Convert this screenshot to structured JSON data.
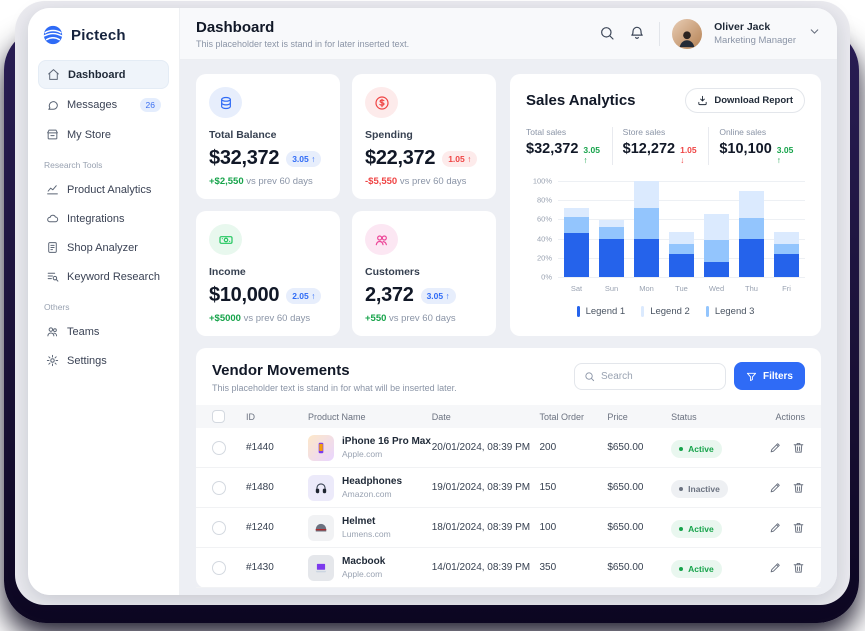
{
  "app": {
    "name": "Pictech",
    "accent_color": "#2f6bf6",
    "backdrop_color": "#1b1238"
  },
  "sidebar": {
    "sections": [
      {
        "label": "",
        "items": [
          {
            "icon": "home-icon",
            "label": "Dashboard",
            "active": true
          },
          {
            "icon": "chat-icon",
            "label": "Messages",
            "badge": "26"
          },
          {
            "icon": "store-icon",
            "label": "My Store"
          }
        ]
      },
      {
        "label": "Research Tools",
        "items": [
          {
            "icon": "chart-line-icon",
            "label": "Product Analytics"
          },
          {
            "icon": "cloud-icon",
            "label": "Integrations"
          },
          {
            "icon": "doc-edit-icon",
            "label": "Shop Analyzer"
          },
          {
            "icon": "list-search-icon",
            "label": "Keyword Research"
          }
        ]
      },
      {
        "label": "Others",
        "items": [
          {
            "icon": "users-icon",
            "label": "Teams"
          },
          {
            "icon": "gear-icon",
            "label": "Settings"
          }
        ]
      }
    ]
  },
  "header": {
    "title": "Dashboard",
    "subtitle": "This placeholder text is stand in for later inserted text.",
    "icons": [
      "search-icon",
      "bell-icon"
    ],
    "user": {
      "name": "Oliver Jack",
      "role": "Marketing Manager"
    }
  },
  "stats": [
    {
      "icon": "coins-icon",
      "icon_color": "#2f6bf6",
      "icon_bg": "#e7eefc",
      "title": "Total Balance",
      "value": "$32,372",
      "badge": "3.05 ↑",
      "badge_color": "#2f6bf6",
      "badge_bg": "#e7eefc",
      "delta": "+$2,550",
      "delta_color": "#16a34a",
      "delta_suffix": " vs prev 60 days"
    },
    {
      "icon": "dollar-circle-icon",
      "icon_color": "#ef4444",
      "icon_bg": "#fdebeb",
      "title": "Spending",
      "value": "$22,372",
      "badge": "1.05 ↑",
      "badge_color": "#ef4444",
      "badge_bg": "#fdebeb",
      "delta": "-$5,550",
      "delta_color": "#ef4444",
      "delta_suffix": " vs prev 60 days"
    },
    {
      "icon": "banknote-icon",
      "icon_color": "#22c55e",
      "icon_bg": "#e8f8ee",
      "title": "Income",
      "value": "$10,000",
      "badge": "2.05 ↑",
      "badge_color": "#2f6bf6",
      "badge_bg": "#e7eefc",
      "delta": "+$5000",
      "delta_color": "#16a34a",
      "delta_suffix": " vs prev 60 days"
    },
    {
      "icon": "people-icon",
      "icon_color": "#ec4899",
      "icon_bg": "#fce7f3",
      "title": "Customers",
      "value": "2,372",
      "badge": "3.05 ↑",
      "badge_color": "#2f6bf6",
      "badge_bg": "#e7eefc",
      "delta": "+550",
      "delta_color": "#16a34a",
      "delta_suffix": " vs prev 60 days"
    }
  ],
  "sales": {
    "title": "Sales Analytics",
    "download_label": "Download Report",
    "metrics": [
      {
        "label": "Total sales",
        "value": "$32,372",
        "change": "3.05 ↑",
        "change_color": "#16a34a"
      },
      {
        "label": "Store sales",
        "value": "$12,272",
        "change": "1.05 ↓",
        "change_color": "#ef4444"
      },
      {
        "label": "Online sales",
        "value": "$10,100",
        "change": "3.05 ↑",
        "change_color": "#16a34a"
      }
    ]
  },
  "chart_data": {
    "type": "bar",
    "stacked": true,
    "title": "Sales Analytics weekly breakdown",
    "categories": [
      "Sat",
      "Sun",
      "Mon",
      "Tue",
      "Wed",
      "Thu",
      "Fri"
    ],
    "series_stack_order_bottom_to_top": [
      {
        "name": "Legend 1",
        "color": "#2563eb",
        "values": [
          46,
          40,
          40,
          24,
          16,
          40,
          24
        ]
      },
      {
        "name": "Legend 3",
        "color": "#93c5fd",
        "values": [
          16,
          12,
          32,
          10,
          23,
          22,
          10
        ]
      },
      {
        "name": "Legend 2",
        "color": "#dbeafe",
        "values": [
          10,
          7,
          28,
          13,
          27,
          28,
          13
        ]
      }
    ],
    "legend": [
      {
        "name": "Legend 1",
        "color": "#2563eb"
      },
      {
        "name": "Legend 2",
        "color": "#dbeafe"
      },
      {
        "name": "Legend 3",
        "color": "#93c5fd"
      }
    ],
    "yticks": [
      "100%",
      "80%",
      "60%",
      "40%",
      "20%",
      "0%"
    ],
    "ylim": [
      0,
      100
    ],
    "grid": true,
    "legend_position": "bottom"
  },
  "vendor": {
    "title": "Vendor Movements",
    "subtitle": "This placeholder text is stand in for what will be inserted later.",
    "search_placeholder": "Search",
    "filters_label": "Filters",
    "columns": [
      "ID",
      "Product Name",
      "Date",
      "Total Order",
      "Price",
      "Status",
      "Actions"
    ],
    "rows": [
      {
        "id": "#1440",
        "product": "iPhone 16 Pro Max",
        "vendor": "Apple.com",
        "thumb": "phone-thumb",
        "date": "20/01/2024, 08:39 PM",
        "total_order": "200",
        "price": "$650.00",
        "status": "Active"
      },
      {
        "id": "#1480",
        "product": "Headphones",
        "vendor": "Amazon.com",
        "thumb": "headphones-thumb",
        "date": "19/01/2024, 08:39 PM",
        "total_order": "150",
        "price": "$650.00",
        "status": "Inactive"
      },
      {
        "id": "#1240",
        "product": "Helmet",
        "vendor": "Lumens.com",
        "thumb": "helmet-thumb",
        "date": "18/01/2024, 08:39 PM",
        "total_order": "100",
        "price": "$650.00",
        "status": "Active"
      },
      {
        "id": "#1430",
        "product": "Macbook",
        "vendor": "Apple.com",
        "thumb": "macbook-thumb",
        "date": "14/01/2024, 08:39 PM",
        "total_order": "350",
        "price": "$650.00",
        "status": "Active"
      }
    ],
    "status_styles": {
      "Active": {
        "color": "#16a34a",
        "bg": "#e9f7ef"
      },
      "Inactive": {
        "color": "#6b7280",
        "bg": "#eef0f3"
      }
    }
  }
}
